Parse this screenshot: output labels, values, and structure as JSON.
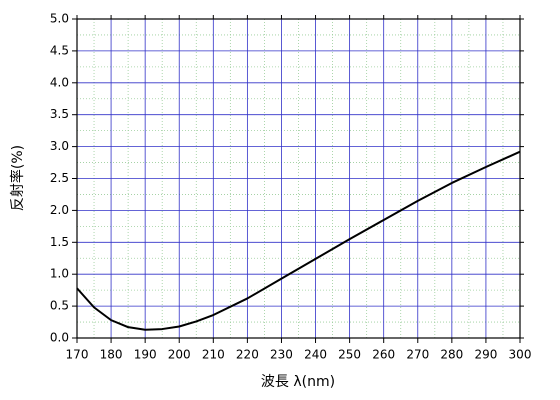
{
  "chart_data": {
    "type": "line",
    "x_label": "波長 λ(nm)",
    "y_label": "反射率(%)",
    "x": [
      170,
      175,
      180,
      185,
      190,
      195,
      200,
      205,
      210,
      220,
      230,
      240,
      250,
      260,
      270,
      280,
      290,
      300
    ],
    "series": [
      {
        "name": "反射率",
        "color": "#000000",
        "values": [
          0.78,
          0.48,
          0.28,
          0.17,
          0.13,
          0.14,
          0.18,
          0.26,
          0.36,
          0.62,
          0.93,
          1.24,
          1.55,
          1.85,
          2.15,
          2.43,
          2.68,
          2.92
        ]
      }
    ],
    "xlim": [
      170,
      300
    ],
    "ylim": [
      0,
      5
    ],
    "xticks": [
      170,
      180,
      190,
      200,
      210,
      220,
      230,
      240,
      250,
      260,
      270,
      280,
      290,
      300
    ],
    "yticks": [
      {
        "value": 0,
        "label": "0.0"
      },
      {
        "value": 0.5,
        "label": "0.5"
      },
      {
        "value": 1,
        "label": "1.0"
      },
      {
        "value": 1.5,
        "label": "1.5"
      },
      {
        "value": 2,
        "label": "2.0"
      },
      {
        "value": 2.5,
        "label": "2.5"
      },
      {
        "value": 3,
        "label": "3.0"
      },
      {
        "value": 3.5,
        "label": "3.5"
      },
      {
        "value": 4,
        "label": "4.0"
      },
      {
        "value": 4.5,
        "label": "4.5"
      },
      {
        "value": 5,
        "label": "5.0"
      }
    ],
    "xminorticks": [
      175,
      185,
      195,
      205,
      215,
      225,
      235,
      245,
      255,
      265,
      275,
      285,
      295
    ],
    "yminorticks": [
      0.25,
      0.75,
      1.25,
      1.75,
      2.25,
      2.75,
      3.25,
      3.75,
      4.25,
      4.75
    ],
    "grid": true,
    "grid_color": "#3030c8",
    "minor_grid_color": "#99cc99"
  }
}
